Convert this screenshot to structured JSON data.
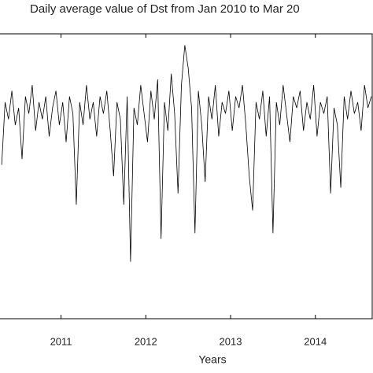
{
  "chart_data": {
    "type": "line",
    "title": "Daily average value of Dst from Jan 2010 to Mar 20",
    "xlabel": "Years",
    "color": "#000000",
    "x": [
      2010.3,
      2010.34,
      2010.38,
      2010.42,
      2010.46,
      2010.5,
      2010.54,
      2010.58,
      2010.62,
      2010.66,
      2010.7,
      2010.74,
      2010.78,
      2010.82,
      2010.86,
      2010.9,
      2010.94,
      2010.98,
      2011.02,
      2011.06,
      2011.1,
      2011.14,
      2011.18,
      2011.22,
      2011.26,
      2011.3,
      2011.34,
      2011.38,
      2011.42,
      2011.46,
      2011.5,
      2011.54,
      2011.58,
      2011.62,
      2011.66,
      2011.7,
      2011.74,
      2011.78,
      2011.82,
      2011.86,
      2011.9,
      2011.94,
      2011.98,
      2012.02,
      2012.06,
      2012.1,
      2012.14,
      2012.18,
      2012.22,
      2012.26,
      2012.3,
      2012.34,
      2012.38,
      2012.42,
      2012.46,
      2012.5,
      2012.54,
      2012.58,
      2012.62,
      2012.66,
      2012.7,
      2012.74,
      2012.78,
      2012.82,
      2012.86,
      2012.9,
      2012.94,
      2012.98,
      2013.02,
      2013.06,
      2013.1,
      2013.14,
      2013.18,
      2013.22,
      2013.26,
      2013.3,
      2013.34,
      2013.38,
      2013.42,
      2013.46,
      2013.5,
      2013.54,
      2013.58,
      2013.62,
      2013.66,
      2013.7,
      2013.74,
      2013.78,
      2013.82,
      2013.86,
      2013.9,
      2013.94,
      2013.98,
      2014.02,
      2014.06,
      2014.1,
      2014.14,
      2014.18,
      2014.22,
      2014.26,
      2014.3,
      2014.34,
      2014.38,
      2014.42,
      2014.46,
      2014.5,
      2014.54,
      2014.58,
      2014.62,
      2014.66
    ],
    "values": [
      -65,
      -10,
      -25,
      0,
      -30,
      -15,
      -60,
      -5,
      -20,
      5,
      -35,
      -10,
      -25,
      -5,
      -40,
      -15,
      0,
      -30,
      -10,
      -45,
      -5,
      -20,
      -100,
      -10,
      -30,
      5,
      -25,
      -10,
      -40,
      -5,
      -20,
      0,
      -35,
      -75,
      -10,
      -25,
      -100,
      -5,
      -150,
      -15,
      -30,
      5,
      -20,
      -45,
      0,
      -25,
      10,
      -130,
      -10,
      -35,
      15,
      -20,
      -90,
      5,
      40,
      20,
      -15,
      -125,
      0,
      -30,
      -80,
      -5,
      -25,
      5,
      -40,
      -10,
      -20,
      0,
      -35,
      -5,
      -15,
      5,
      -30,
      -75,
      -105,
      -10,
      -25,
      0,
      -40,
      -5,
      -125,
      -10,
      -30,
      5,
      -20,
      -45,
      -5,
      -15,
      0,
      -35,
      -10,
      -25,
      5,
      -40,
      -10,
      -20,
      -5,
      -90,
      -15,
      -30,
      -85,
      -5,
      -25,
      0,
      -20,
      -10,
      -35,
      5,
      -15,
      -5
    ],
    "xlim": [
      2010.28,
      2014.68
    ],
    "ylim": [
      -200,
      50
    ],
    "xticks": [
      2011,
      2012,
      2013,
      2014
    ]
  }
}
